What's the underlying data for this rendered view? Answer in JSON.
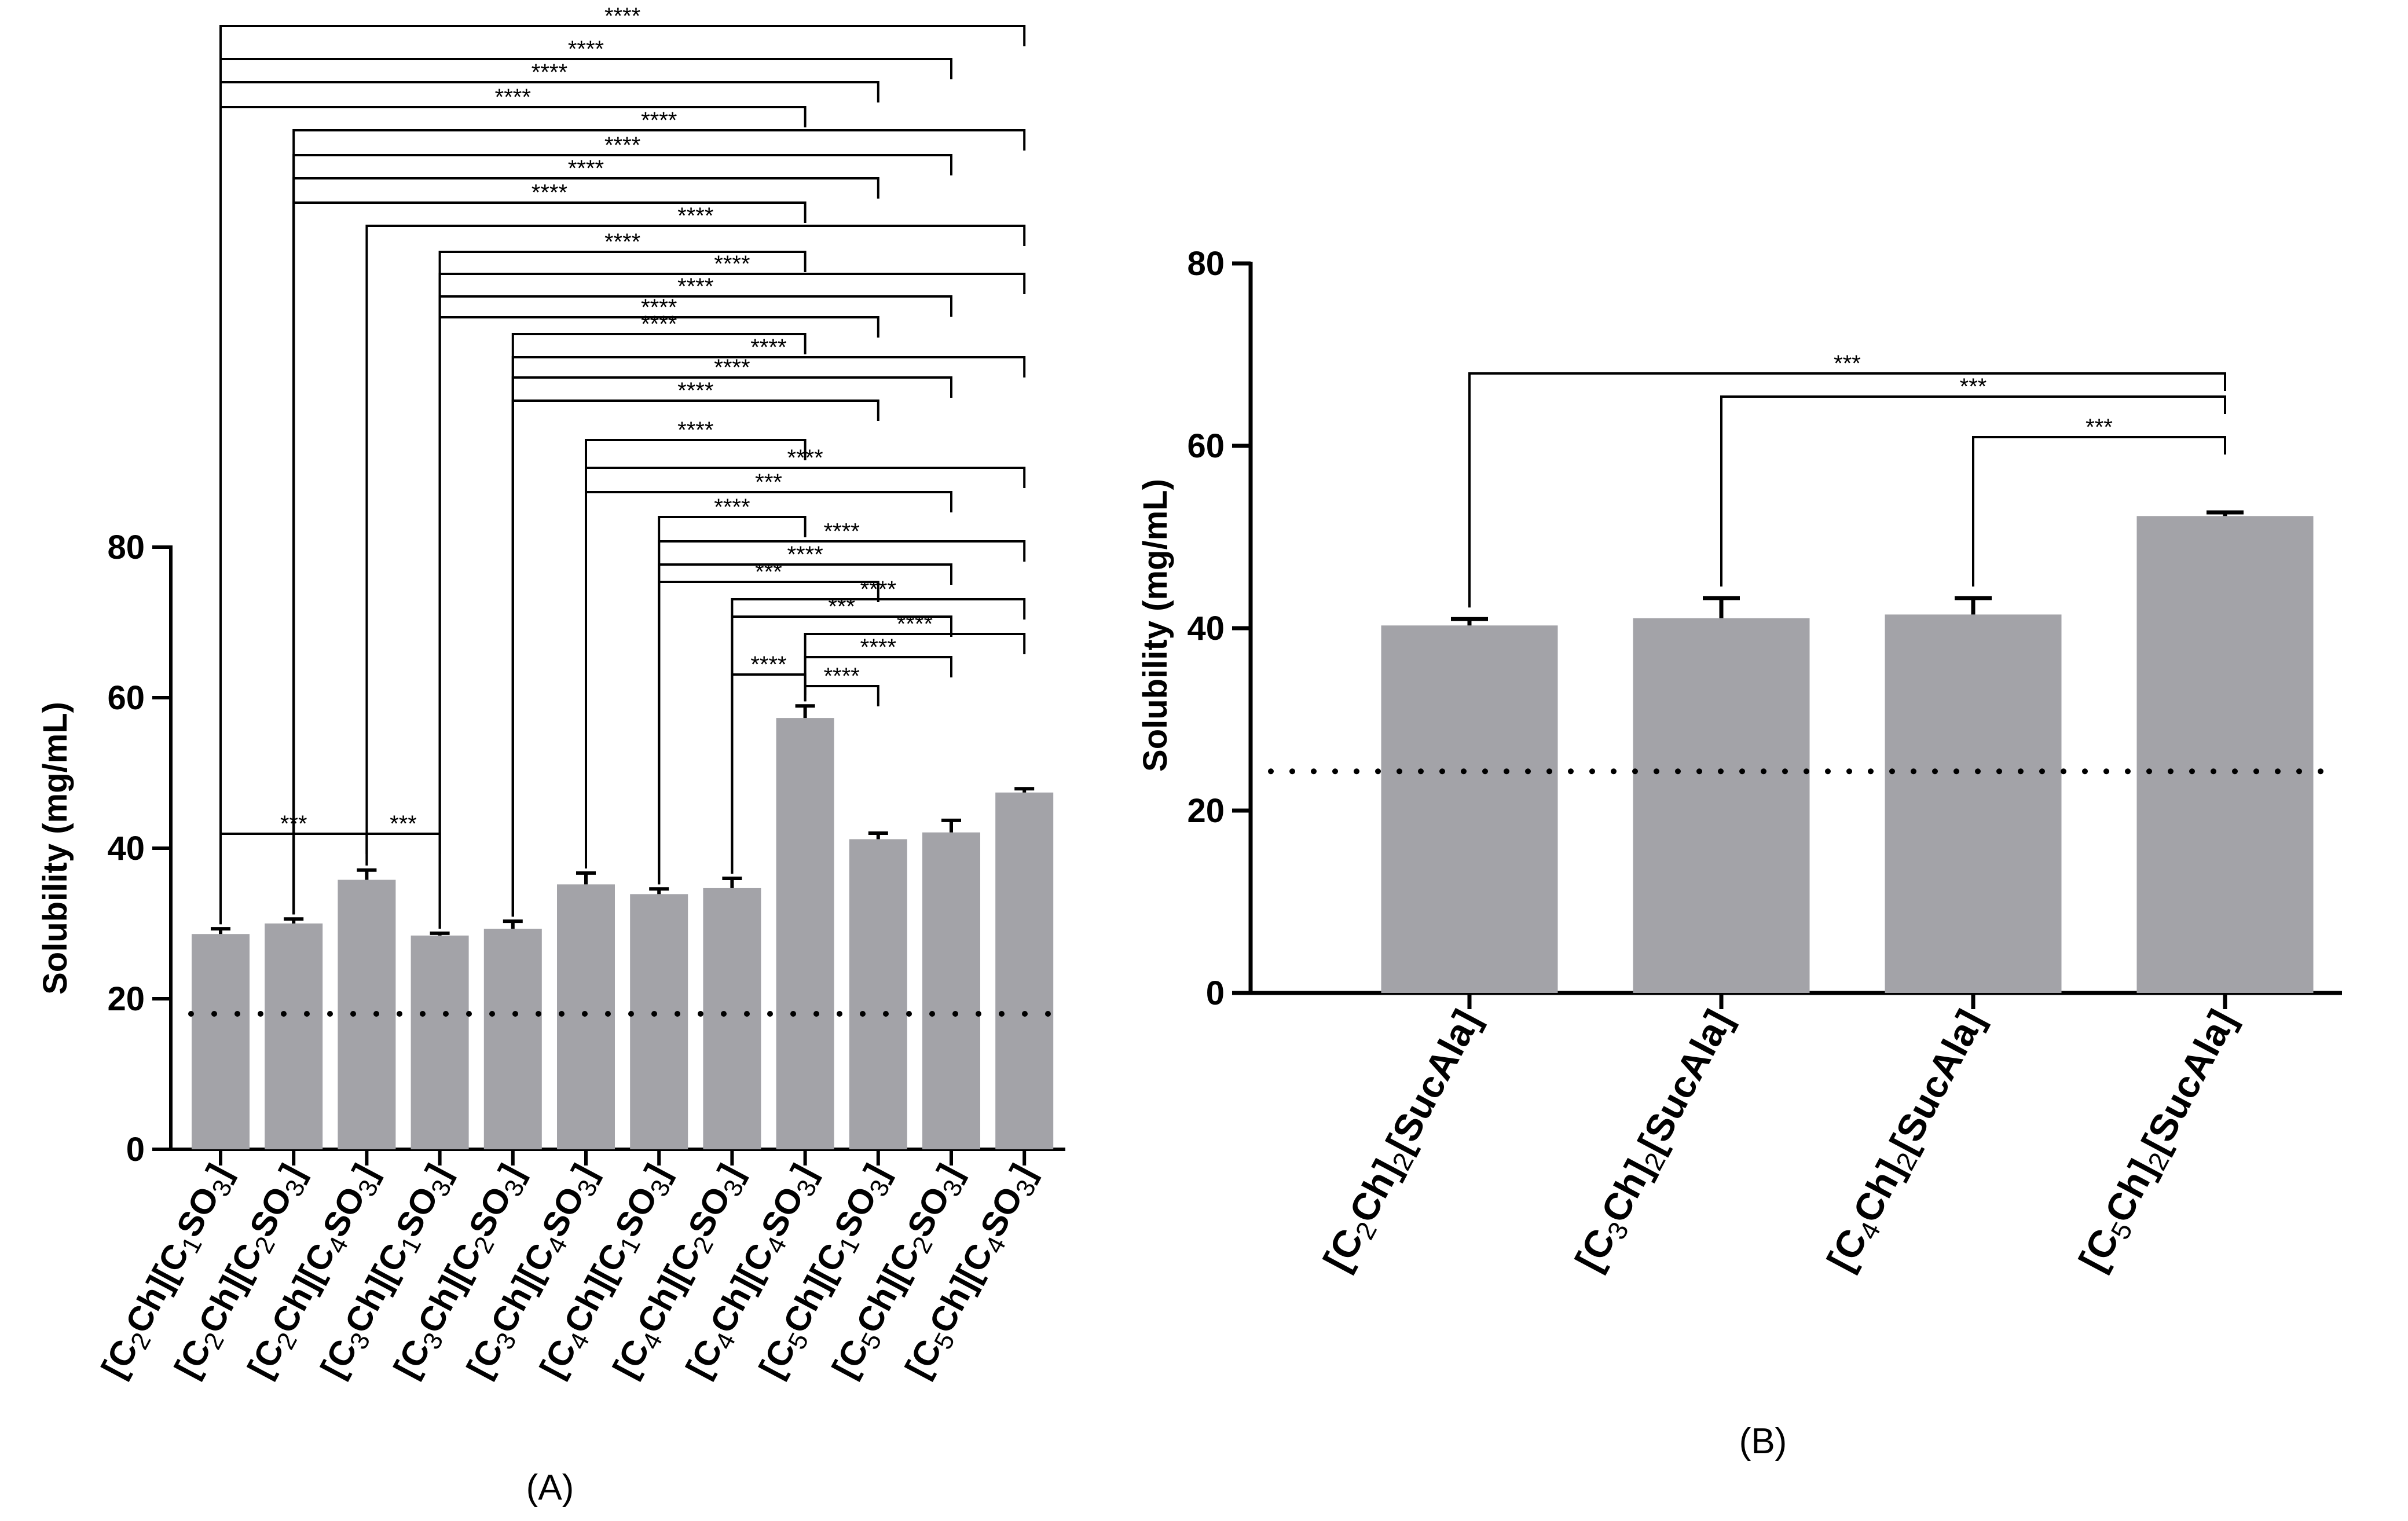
{
  "chart_data": [
    {
      "type": "bar",
      "panel_label": "(A)",
      "title": "",
      "xlabel": "",
      "ylabel": "Solubility (mg/mL)",
      "ylim": [
        0,
        80
      ],
      "yticks": [
        0,
        20,
        40,
        60,
        80
      ],
      "bar_color": "#a3a3a8",
      "categories": [
        {
          "prefix": "[C",
          "n1": "2",
          "mid": "Ch][C",
          "n2": "1",
          "suffix": "SO",
          "n3": "3",
          "end": "]"
        },
        {
          "prefix": "[C",
          "n1": "2",
          "mid": "Ch][C",
          "n2": "2",
          "suffix": "SO",
          "n3": "3",
          "end": "]"
        },
        {
          "prefix": "[C",
          "n1": "2",
          "mid": "Ch][C",
          "n2": "4",
          "suffix": "SO",
          "n3": "3",
          "end": "]"
        },
        {
          "prefix": "[C",
          "n1": "3",
          "mid": "Ch][C",
          "n2": "1",
          "suffix": "SO",
          "n3": "3",
          "end": "]"
        },
        {
          "prefix": "[C",
          "n1": "3",
          "mid": "Ch][C",
          "n2": "2",
          "suffix": "SO",
          "n3": "3",
          "end": "]"
        },
        {
          "prefix": "[C",
          "n1": "3",
          "mid": "Ch][C",
          "n2": "4",
          "suffix": "SO",
          "n3": "3",
          "end": "]"
        },
        {
          "prefix": "[C",
          "n1": "4",
          "mid": "Ch][C",
          "n2": "1",
          "suffix": "SO",
          "n3": "3",
          "end": "]"
        },
        {
          "prefix": "[C",
          "n1": "4",
          "mid": "Ch][C",
          "n2": "2",
          "suffix": "SO",
          "n3": "3",
          "end": "]"
        },
        {
          "prefix": "[C",
          "n1": "4",
          "mid": "Ch][C",
          "n2": "4",
          "suffix": "SO",
          "n3": "3",
          "end": "]"
        },
        {
          "prefix": "[C",
          "n1": "5",
          "mid": "Ch][C",
          "n2": "1",
          "suffix": "SO",
          "n3": "3",
          "end": "]"
        },
        {
          "prefix": "[C",
          "n1": "5",
          "mid": "Ch][C",
          "n2": "2",
          "suffix": "SO",
          "n3": "3",
          "end": "]"
        },
        {
          "prefix": "[C",
          "n1": "5",
          "mid": "Ch][C",
          "n2": "4",
          "suffix": "SO",
          "n3": "3",
          "end": "]"
        }
      ],
      "values": [
        28.6,
        30.0,
        35.8,
        28.4,
        29.3,
        35.2,
        33.9,
        34.7,
        57.3,
        41.2,
        42.1,
        47.4
      ],
      "errors": [
        0.7,
        0.6,
        1.3,
        0.3,
        1.0,
        1.5,
        0.7,
        1.3,
        1.6,
        0.8,
        1.6,
        0.5
      ],
      "reference_line": 18.0,
      "comparisons": [
        {
          "from": 0,
          "to": 11,
          "label": "****"
        },
        {
          "from": 0,
          "to": 10,
          "label": "****"
        },
        {
          "from": 0,
          "to": 9,
          "label": "****"
        },
        {
          "from": 0,
          "to": 8,
          "label": "****"
        },
        {
          "from": 1,
          "to": 11,
          "label": "****"
        },
        {
          "from": 1,
          "to": 10,
          "label": "****"
        },
        {
          "from": 1,
          "to": 9,
          "label": "****"
        },
        {
          "from": 1,
          "to": 8,
          "label": "****"
        },
        {
          "from": 2,
          "to": 11,
          "label": "****"
        },
        {
          "from": 3,
          "to": 8,
          "label": "****"
        },
        {
          "from": 3,
          "to": 11,
          "label": "****"
        },
        {
          "from": 3,
          "to": 10,
          "label": "****"
        },
        {
          "from": 3,
          "to": 9,
          "label": "****"
        },
        {
          "from": 4,
          "to": 8,
          "label": "****"
        },
        {
          "from": 4,
          "to": 11,
          "label": "****"
        },
        {
          "from": 4,
          "to": 10,
          "label": "****"
        },
        {
          "from": 4,
          "to": 9,
          "label": "****"
        },
        {
          "from": 5,
          "to": 8,
          "label": "****"
        },
        {
          "from": 5,
          "to": 11,
          "label": "****"
        },
        {
          "from": 5,
          "to": 10,
          "label": "***"
        },
        {
          "from": 6,
          "to": 8,
          "label": "****"
        },
        {
          "from": 6,
          "to": 11,
          "label": "****"
        },
        {
          "from": 6,
          "to": 10,
          "label": "****"
        },
        {
          "from": 6,
          "to": 9,
          "label": "***"
        },
        {
          "from": 7,
          "to": 11,
          "label": "****"
        },
        {
          "from": 7,
          "to": 10,
          "label": "***"
        },
        {
          "from": 8,
          "to": 11,
          "label": "****"
        },
        {
          "from": 7,
          "to": 8,
          "label": "****"
        },
        {
          "from": 8,
          "to": 10,
          "label": "****"
        },
        {
          "from": 8,
          "to": 9,
          "label": "****"
        },
        {
          "from": 0,
          "to": 2,
          "label": "***"
        },
        {
          "from": 2,
          "to": 3,
          "label": "***"
        }
      ]
    },
    {
      "type": "bar",
      "panel_label": "(B)",
      "title": "",
      "xlabel": "",
      "ylabel": "Solubility (mg/mL)",
      "ylim": [
        0,
        80
      ],
      "yticks": [
        0,
        20,
        40,
        60,
        80
      ],
      "bar_color": "#a3a3a8",
      "categories": [
        {
          "prefix": "[C",
          "n1": "2",
          "mid": "Ch]",
          "n2": "2",
          "end": "[SucAla]"
        },
        {
          "prefix": "[C",
          "n1": "3",
          "mid": "Ch]",
          "n2": "2",
          "end": "[SucAla]"
        },
        {
          "prefix": "[C",
          "n1": "4",
          "mid": "Ch]",
          "n2": "2",
          "end": "[SucAla]"
        },
        {
          "prefix": "[C",
          "n1": "5",
          "mid": "Ch]",
          "n2": "2",
          "end": "[SucAla]"
        }
      ],
      "values": [
        40.3,
        41.1,
        41.5,
        52.3
      ],
      "errors": [
        0.7,
        2.2,
        1.8,
        0.4
      ],
      "reference_line": 24.3,
      "comparisons": [
        {
          "from": 0,
          "to": 3,
          "label": "***"
        },
        {
          "from": 1,
          "to": 3,
          "label": "***"
        },
        {
          "from": 2,
          "to": 3,
          "label": "***"
        }
      ]
    }
  ]
}
